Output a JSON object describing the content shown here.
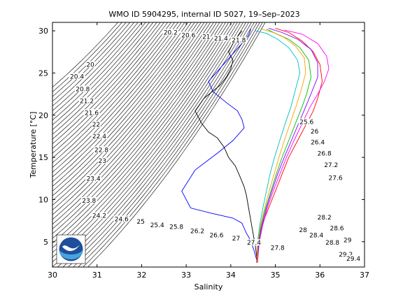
{
  "chart_data": {
    "type": "line",
    "title": "WMO ID 5904295, internal ID 5027, 19–Sep–2023",
    "xlabel": "Salinity",
    "ylabel": "Temperature [°C]",
    "xlim": [
      30,
      37
    ],
    "ylim": [
      2,
      31
    ],
    "x_ticks": [
      "30",
      "31",
      "32",
      "33",
      "34",
      "35",
      "36",
      "37"
    ],
    "y_ticks": [
      "5",
      "10",
      "15",
      "20",
      "25",
      "30"
    ],
    "grid": false,
    "box": true,
    "logo": "noaa-logo",
    "density_contours": {
      "labels": [
        {
          "text": "20",
          "s": 30.85,
          "t": 25.9
        },
        {
          "text": "20.4",
          "s": 30.55,
          "t": 24.5
        },
        {
          "text": "20.8",
          "s": 30.68,
          "t": 23.0
        },
        {
          "text": "21.2",
          "s": 30.77,
          "t": 21.6
        },
        {
          "text": "21.6",
          "s": 30.88,
          "t": 20.2
        },
        {
          "text": "22",
          "s": 30.98,
          "t": 18.8
        },
        {
          "text": "22.4",
          "s": 31.05,
          "t": 17.4
        },
        {
          "text": "22.8",
          "s": 31.1,
          "t": 15.8
        },
        {
          "text": "23",
          "s": 31.12,
          "t": 14.5
        },
        {
          "text": "23.4",
          "s": 30.92,
          "t": 12.4
        },
        {
          "text": "23.8",
          "s": 30.82,
          "t": 9.8
        },
        {
          "text": "24.2",
          "s": 31.05,
          "t": 8.0
        },
        {
          "text": "24.6",
          "s": 31.55,
          "t": 7.6
        },
        {
          "text": "25",
          "s": 31.98,
          "t": 7.3
        },
        {
          "text": "25.4",
          "s": 32.35,
          "t": 6.9
        },
        {
          "text": "25.8",
          "s": 32.78,
          "t": 6.7
        },
        {
          "text": "26.2",
          "s": 33.25,
          "t": 6.2
        },
        {
          "text": "26.6",
          "s": 33.68,
          "t": 5.7
        },
        {
          "text": "27",
          "s": 34.12,
          "t": 5.3
        },
        {
          "text": "27.4",
          "s": 34.52,
          "t": 4.8
        },
        {
          "text": "27.8",
          "s": 35.05,
          "t": 4.2
        },
        {
          "text": "20.2",
          "s": 32.65,
          "t": 29.7
        },
        {
          "text": "20.6",
          "s": 33.05,
          "t": 29.4
        },
        {
          "text": "21",
          "s": 33.45,
          "t": 29.2
        },
        {
          "text": "21.4",
          "s": 33.78,
          "t": 29.0
        },
        {
          "text": "21.8",
          "s": 34.18,
          "t": 28.8
        },
        {
          "text": "25.6",
          "s": 35.7,
          "t": 19.1
        },
        {
          "text": "26",
          "s": 35.88,
          "t": 18.0
        },
        {
          "text": "26.4",
          "s": 35.95,
          "t": 16.7
        },
        {
          "text": "26.8",
          "s": 36.1,
          "t": 15.4
        },
        {
          "text": "27.2",
          "s": 36.25,
          "t": 14.0
        },
        {
          "text": "27.6",
          "s": 36.35,
          "t": 12.5
        },
        {
          "text": "28.2",
          "s": 36.1,
          "t": 7.8
        },
        {
          "text": "28",
          "s": 35.62,
          "t": 6.3
        },
        {
          "text": "28.6",
          "s": 36.38,
          "t": 6.5
        },
        {
          "text": "28.4",
          "s": 35.92,
          "t": 5.7
        },
        {
          "text": "28.8",
          "s": 36.28,
          "t": 4.8
        },
        {
          "text": "29",
          "s": 36.62,
          "t": 5.1
        },
        {
          "text": "29.2",
          "s": 36.58,
          "t": 3.4
        },
        {
          "text": "29.4",
          "s": 36.75,
          "t": 2.9
        }
      ]
    },
    "series": [
      {
        "color": "#0000ff",
        "s": [
          34.6,
          34.52,
          34.45,
          34.4,
          34.35,
          34.3,
          34.25,
          34.05,
          33.55,
          33.1,
          32.9,
          33.2,
          33.7,
          34.05,
          34.3,
          34.25,
          34.15,
          33.9,
          33.6,
          33.5,
          33.75,
          34.0,
          34.25,
          34.4,
          34.45
        ],
        "t": [
          2.5,
          4.0,
          5.0,
          5.6,
          6.0,
          6.6,
          7.2,
          7.8,
          8.4,
          9.0,
          11.0,
          13.5,
          15.5,
          17.0,
          18.5,
          19.5,
          20.5,
          21.5,
          22.8,
          24.0,
          25.5,
          27.0,
          28.5,
          29.5,
          30.2
        ]
      },
      {
        "color": "#000000",
        "s": [
          34.6,
          34.55,
          34.5,
          34.45,
          34.4,
          34.35,
          34.3,
          34.2,
          34.1,
          33.95,
          33.85,
          33.7,
          33.5,
          33.35,
          33.2,
          33.4,
          33.75,
          33.9,
          34.0,
          34.05,
          33.95,
          34.05,
          34.15,
          34.25
        ],
        "t": [
          2.5,
          4.5,
          6.0,
          7.5,
          9.0,
          10.5,
          11.5,
          12.8,
          14.0,
          15.0,
          16.2,
          17.3,
          18.0,
          19.0,
          20.5,
          22.0,
          23.5,
          24.5,
          25.5,
          26.5,
          27.5,
          28.5,
          29.3,
          30.0
        ]
      },
      {
        "color": "#ff0000",
        "s": [
          34.58,
          34.6,
          34.7,
          34.85,
          35.0,
          35.15,
          35.3,
          35.5,
          35.7,
          35.85,
          35.95,
          36.05,
          36.0,
          35.85,
          35.6,
          35.3,
          35.0
        ],
        "t": [
          2.5,
          5.0,
          7.0,
          9.0,
          11.0,
          13.0,
          15.0,
          17.0,
          19.0,
          20.5,
          22.0,
          24.0,
          26.0,
          27.5,
          28.8,
          29.8,
          30.3
        ]
      },
      {
        "color": "#00c000",
        "s": [
          34.6,
          34.62,
          34.68,
          34.78,
          34.9,
          35.02,
          35.15,
          35.3,
          35.45,
          35.6,
          35.7,
          35.8,
          35.75,
          35.55,
          35.3,
          35.0,
          34.8
        ],
        "t": [
          2.5,
          5.0,
          7.0,
          9.0,
          11.0,
          13.0,
          15.0,
          17.0,
          19.0,
          21.0,
          22.5,
          24.5,
          26.5,
          28.0,
          29.0,
          29.7,
          30.2
        ]
      },
      {
        "color": "#ff00ff",
        "s": [
          34.6,
          34.64,
          34.72,
          34.82,
          34.95,
          35.1,
          35.25,
          35.42,
          35.6,
          35.78,
          35.95,
          36.1,
          36.2,
          36.15,
          35.95,
          35.6,
          35.2
        ],
        "t": [
          2.5,
          5.0,
          7.0,
          9.0,
          11.0,
          13.0,
          15.0,
          17.0,
          19.0,
          21.0,
          22.5,
          24.0,
          25.5,
          27.0,
          28.5,
          29.6,
          30.1
        ]
      },
      {
        "color": "#00bfbf",
        "s": [
          34.6,
          34.6,
          34.65,
          34.72,
          34.8,
          34.88,
          34.98,
          35.1,
          35.22,
          35.35,
          35.45,
          35.55,
          35.5,
          35.3,
          35.05,
          34.8,
          34.55
        ],
        "t": [
          2.5,
          5.0,
          7.0,
          9.0,
          11.0,
          13.0,
          15.0,
          17.0,
          19.0,
          21.0,
          23.0,
          25.0,
          26.5,
          28.0,
          29.0,
          29.7,
          30.0
        ]
      },
      {
        "color": "#8000ff",
        "s": [
          34.6,
          34.63,
          34.7,
          34.8,
          34.92,
          35.05,
          35.2,
          35.36,
          35.52,
          35.68,
          35.82,
          35.95,
          35.95,
          35.8,
          35.5,
          35.15,
          34.85
        ],
        "t": [
          2.5,
          5.0,
          7.0,
          9.0,
          11.0,
          13.0,
          15.0,
          17.0,
          19.0,
          21.0,
          22.8,
          24.5,
          26.2,
          27.8,
          29.0,
          29.8,
          30.3
        ]
      },
      {
        "color": "#ffa000",
        "s": [
          34.6,
          34.61,
          34.67,
          34.76,
          34.86,
          34.97,
          35.08,
          35.2,
          35.33,
          35.46,
          35.58,
          35.68,
          35.65,
          35.45,
          35.2,
          34.95,
          34.7
        ],
        "t": [
          2.5,
          5.0,
          7.0,
          9.0,
          11.0,
          13.0,
          15.0,
          17.0,
          19.0,
          21.0,
          23.0,
          25.0,
          26.8,
          28.2,
          29.2,
          29.8,
          30.2
        ]
      }
    ]
  }
}
